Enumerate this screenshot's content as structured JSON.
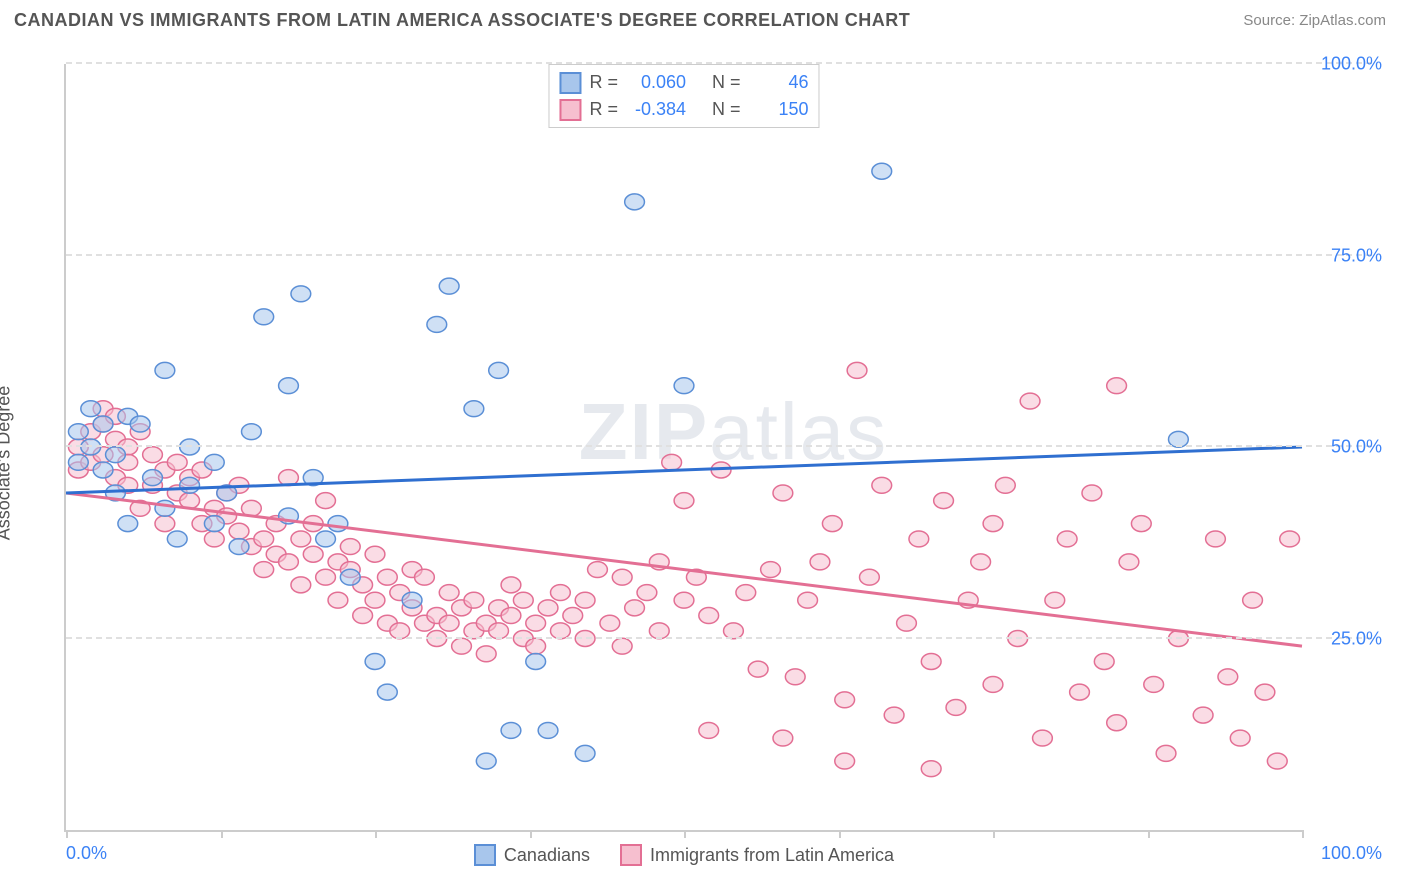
{
  "header": {
    "title": "CANADIAN VS IMMIGRANTS FROM LATIN AMERICA ASSOCIATE'S DEGREE CORRELATION CHART",
    "source_prefix": "Source: ",
    "source_name": "ZipAtlas.com"
  },
  "watermark": {
    "bold": "ZIP",
    "light": "atlas"
  },
  "y_axis": {
    "label": "Associate's Degree"
  },
  "chart": {
    "type": "scatter",
    "xlim": [
      0,
      100
    ],
    "ylim": [
      0,
      100
    ],
    "x_ticks": [
      0,
      12.5,
      25,
      37.5,
      50,
      62.5,
      75,
      87.5,
      100
    ],
    "y_grid": [
      25,
      50,
      75,
      100
    ],
    "y_tick_labels": [
      "25.0%",
      "50.0%",
      "75.0%",
      "100.0%"
    ],
    "x_min_label": "0.0%",
    "x_max_label": "100.0%",
    "background_color": "#ffffff",
    "grid_color": "#e0e0e0",
    "axis_color": "#cccccc",
    "tick_label_color": "#3b82f6",
    "marker_radius": 8,
    "marker_opacity": 0.55,
    "line_width": 3
  },
  "series": [
    {
      "key": "canadians",
      "label": "Canadians",
      "fill": "#a8c6ec",
      "stroke": "#5b8fd6",
      "line_color": "#2f6fd0",
      "r_value": "0.060",
      "n_value": "46",
      "trend": {
        "y_at_x0": 44,
        "y_at_x100": 50
      },
      "points": [
        [
          1,
          52
        ],
        [
          1,
          48
        ],
        [
          2,
          55
        ],
        [
          2,
          50
        ],
        [
          3,
          53
        ],
        [
          3,
          47
        ],
        [
          4,
          49
        ],
        [
          4,
          44
        ],
        [
          5,
          54
        ],
        [
          5,
          40
        ],
        [
          6,
          53
        ],
        [
          7,
          46
        ],
        [
          8,
          42
        ],
        [
          8,
          60
        ],
        [
          9,
          38
        ],
        [
          10,
          45
        ],
        [
          10,
          50
        ],
        [
          12,
          48
        ],
        [
          12,
          40
        ],
        [
          13,
          44
        ],
        [
          14,
          37
        ],
        [
          15,
          52
        ],
        [
          16,
          67
        ],
        [
          18,
          41
        ],
        [
          18,
          58
        ],
        [
          19,
          70
        ],
        [
          20,
          46
        ],
        [
          21,
          38
        ],
        [
          22,
          40
        ],
        [
          23,
          33
        ],
        [
          25,
          22
        ],
        [
          26,
          18
        ],
        [
          28,
          30
        ],
        [
          30,
          66
        ],
        [
          31,
          71
        ],
        [
          33,
          55
        ],
        [
          34,
          9
        ],
        [
          35,
          60
        ],
        [
          36,
          13
        ],
        [
          38,
          22
        ],
        [
          39,
          13
        ],
        [
          42,
          10
        ],
        [
          46,
          82
        ],
        [
          50,
          58
        ],
        [
          66,
          86
        ],
        [
          90,
          51
        ]
      ]
    },
    {
      "key": "immigrants",
      "label": "Immigrants from Latin America",
      "fill": "#f6bfcf",
      "stroke": "#e36f94",
      "line_color": "#e36f94",
      "r_value": "-0.384",
      "n_value": "150",
      "trend": {
        "y_at_x0": 44,
        "y_at_x100": 24
      },
      "points": [
        [
          1,
          50
        ],
        [
          1,
          47
        ],
        [
          2,
          52
        ],
        [
          2,
          48
        ],
        [
          3,
          53
        ],
        [
          3,
          55
        ],
        [
          3,
          49
        ],
        [
          4,
          51
        ],
        [
          4,
          46
        ],
        [
          4,
          54
        ],
        [
          5,
          50
        ],
        [
          5,
          45
        ],
        [
          5,
          48
        ],
        [
          6,
          52
        ],
        [
          6,
          42
        ],
        [
          7,
          49
        ],
        [
          7,
          45
        ],
        [
          8,
          47
        ],
        [
          8,
          40
        ],
        [
          9,
          44
        ],
        [
          9,
          48
        ],
        [
          10,
          43
        ],
        [
          10,
          46
        ],
        [
          11,
          40
        ],
        [
          11,
          47
        ],
        [
          12,
          42
        ],
        [
          12,
          38
        ],
        [
          13,
          44
        ],
        [
          13,
          41
        ],
        [
          14,
          39
        ],
        [
          14,
          45
        ],
        [
          15,
          37
        ],
        [
          15,
          42
        ],
        [
          16,
          38
        ],
        [
          16,
          34
        ],
        [
          17,
          40
        ],
        [
          17,
          36
        ],
        [
          18,
          35
        ],
        [
          18,
          46
        ],
        [
          19,
          38
        ],
        [
          19,
          32
        ],
        [
          20,
          40
        ],
        [
          20,
          36
        ],
        [
          21,
          33
        ],
        [
          21,
          43
        ],
        [
          22,
          35
        ],
        [
          22,
          30
        ],
        [
          23,
          37
        ],
        [
          23,
          34
        ],
        [
          24,
          32
        ],
        [
          24,
          28
        ],
        [
          25,
          36
        ],
        [
          25,
          30
        ],
        [
          26,
          33
        ],
        [
          26,
          27
        ],
        [
          27,
          31
        ],
        [
          27,
          26
        ],
        [
          28,
          34
        ],
        [
          28,
          29
        ],
        [
          29,
          27
        ],
        [
          29,
          33
        ],
        [
          30,
          28
        ],
        [
          30,
          25
        ],
        [
          31,
          31
        ],
        [
          31,
          27
        ],
        [
          32,
          29
        ],
        [
          32,
          24
        ],
        [
          33,
          26
        ],
        [
          33,
          30
        ],
        [
          34,
          27
        ],
        [
          34,
          23
        ],
        [
          35,
          29
        ],
        [
          35,
          26
        ],
        [
          36,
          28
        ],
        [
          36,
          32
        ],
        [
          37,
          25
        ],
        [
          37,
          30
        ],
        [
          38,
          27
        ],
        [
          38,
          24
        ],
        [
          39,
          29
        ],
        [
          40,
          26
        ],
        [
          40,
          31
        ],
        [
          41,
          28
        ],
        [
          42,
          30
        ],
        [
          42,
          25
        ],
        [
          43,
          34
        ],
        [
          44,
          27
        ],
        [
          45,
          33
        ],
        [
          45,
          24
        ],
        [
          46,
          29
        ],
        [
          47,
          31
        ],
        [
          48,
          35
        ],
        [
          48,
          26
        ],
        [
          49,
          48
        ],
        [
          50,
          30
        ],
        [
          50,
          43
        ],
        [
          51,
          33
        ],
        [
          52,
          28
        ],
        [
          53,
          47
        ],
        [
          54,
          26
        ],
        [
          55,
          31
        ],
        [
          56,
          21
        ],
        [
          57,
          34
        ],
        [
          58,
          44
        ],
        [
          59,
          20
        ],
        [
          60,
          30
        ],
        [
          61,
          35
        ],
        [
          62,
          40
        ],
        [
          63,
          17
        ],
        [
          64,
          60
        ],
        [
          65,
          33
        ],
        [
          66,
          45
        ],
        [
          67,
          15
        ],
        [
          68,
          27
        ],
        [
          69,
          38
        ],
        [
          70,
          22
        ],
        [
          71,
          43
        ],
        [
          72,
          16
        ],
        [
          73,
          30
        ],
        [
          74,
          35
        ],
        [
          75,
          19
        ],
        [
          75,
          40
        ],
        [
          76,
          45
        ],
        [
          77,
          25
        ],
        [
          78,
          56
        ],
        [
          79,
          12
        ],
        [
          80,
          30
        ],
        [
          81,
          38
        ],
        [
          82,
          18
        ],
        [
          83,
          44
        ],
        [
          84,
          22
        ],
        [
          85,
          14
        ],
        [
          86,
          35
        ],
        [
          87,
          40
        ],
        [
          88,
          19
        ],
        [
          89,
          10
        ],
        [
          90,
          25
        ],
        [
          92,
          15
        ],
        [
          93,
          38
        ],
        [
          94,
          20
        ],
        [
          95,
          12
        ],
        [
          96,
          30
        ],
        [
          97,
          18
        ],
        [
          98,
          9
        ],
        [
          99,
          38
        ],
        [
          85,
          58
        ],
        [
          70,
          8
        ],
        [
          63,
          9
        ],
        [
          58,
          12
        ],
        [
          52,
          13
        ]
      ]
    }
  ],
  "top_legend": {
    "r_label": "R =",
    "n_label": "N ="
  },
  "bottom_legend": {
    "items": [
      "Canadians",
      "Immigrants from Latin America"
    ]
  }
}
